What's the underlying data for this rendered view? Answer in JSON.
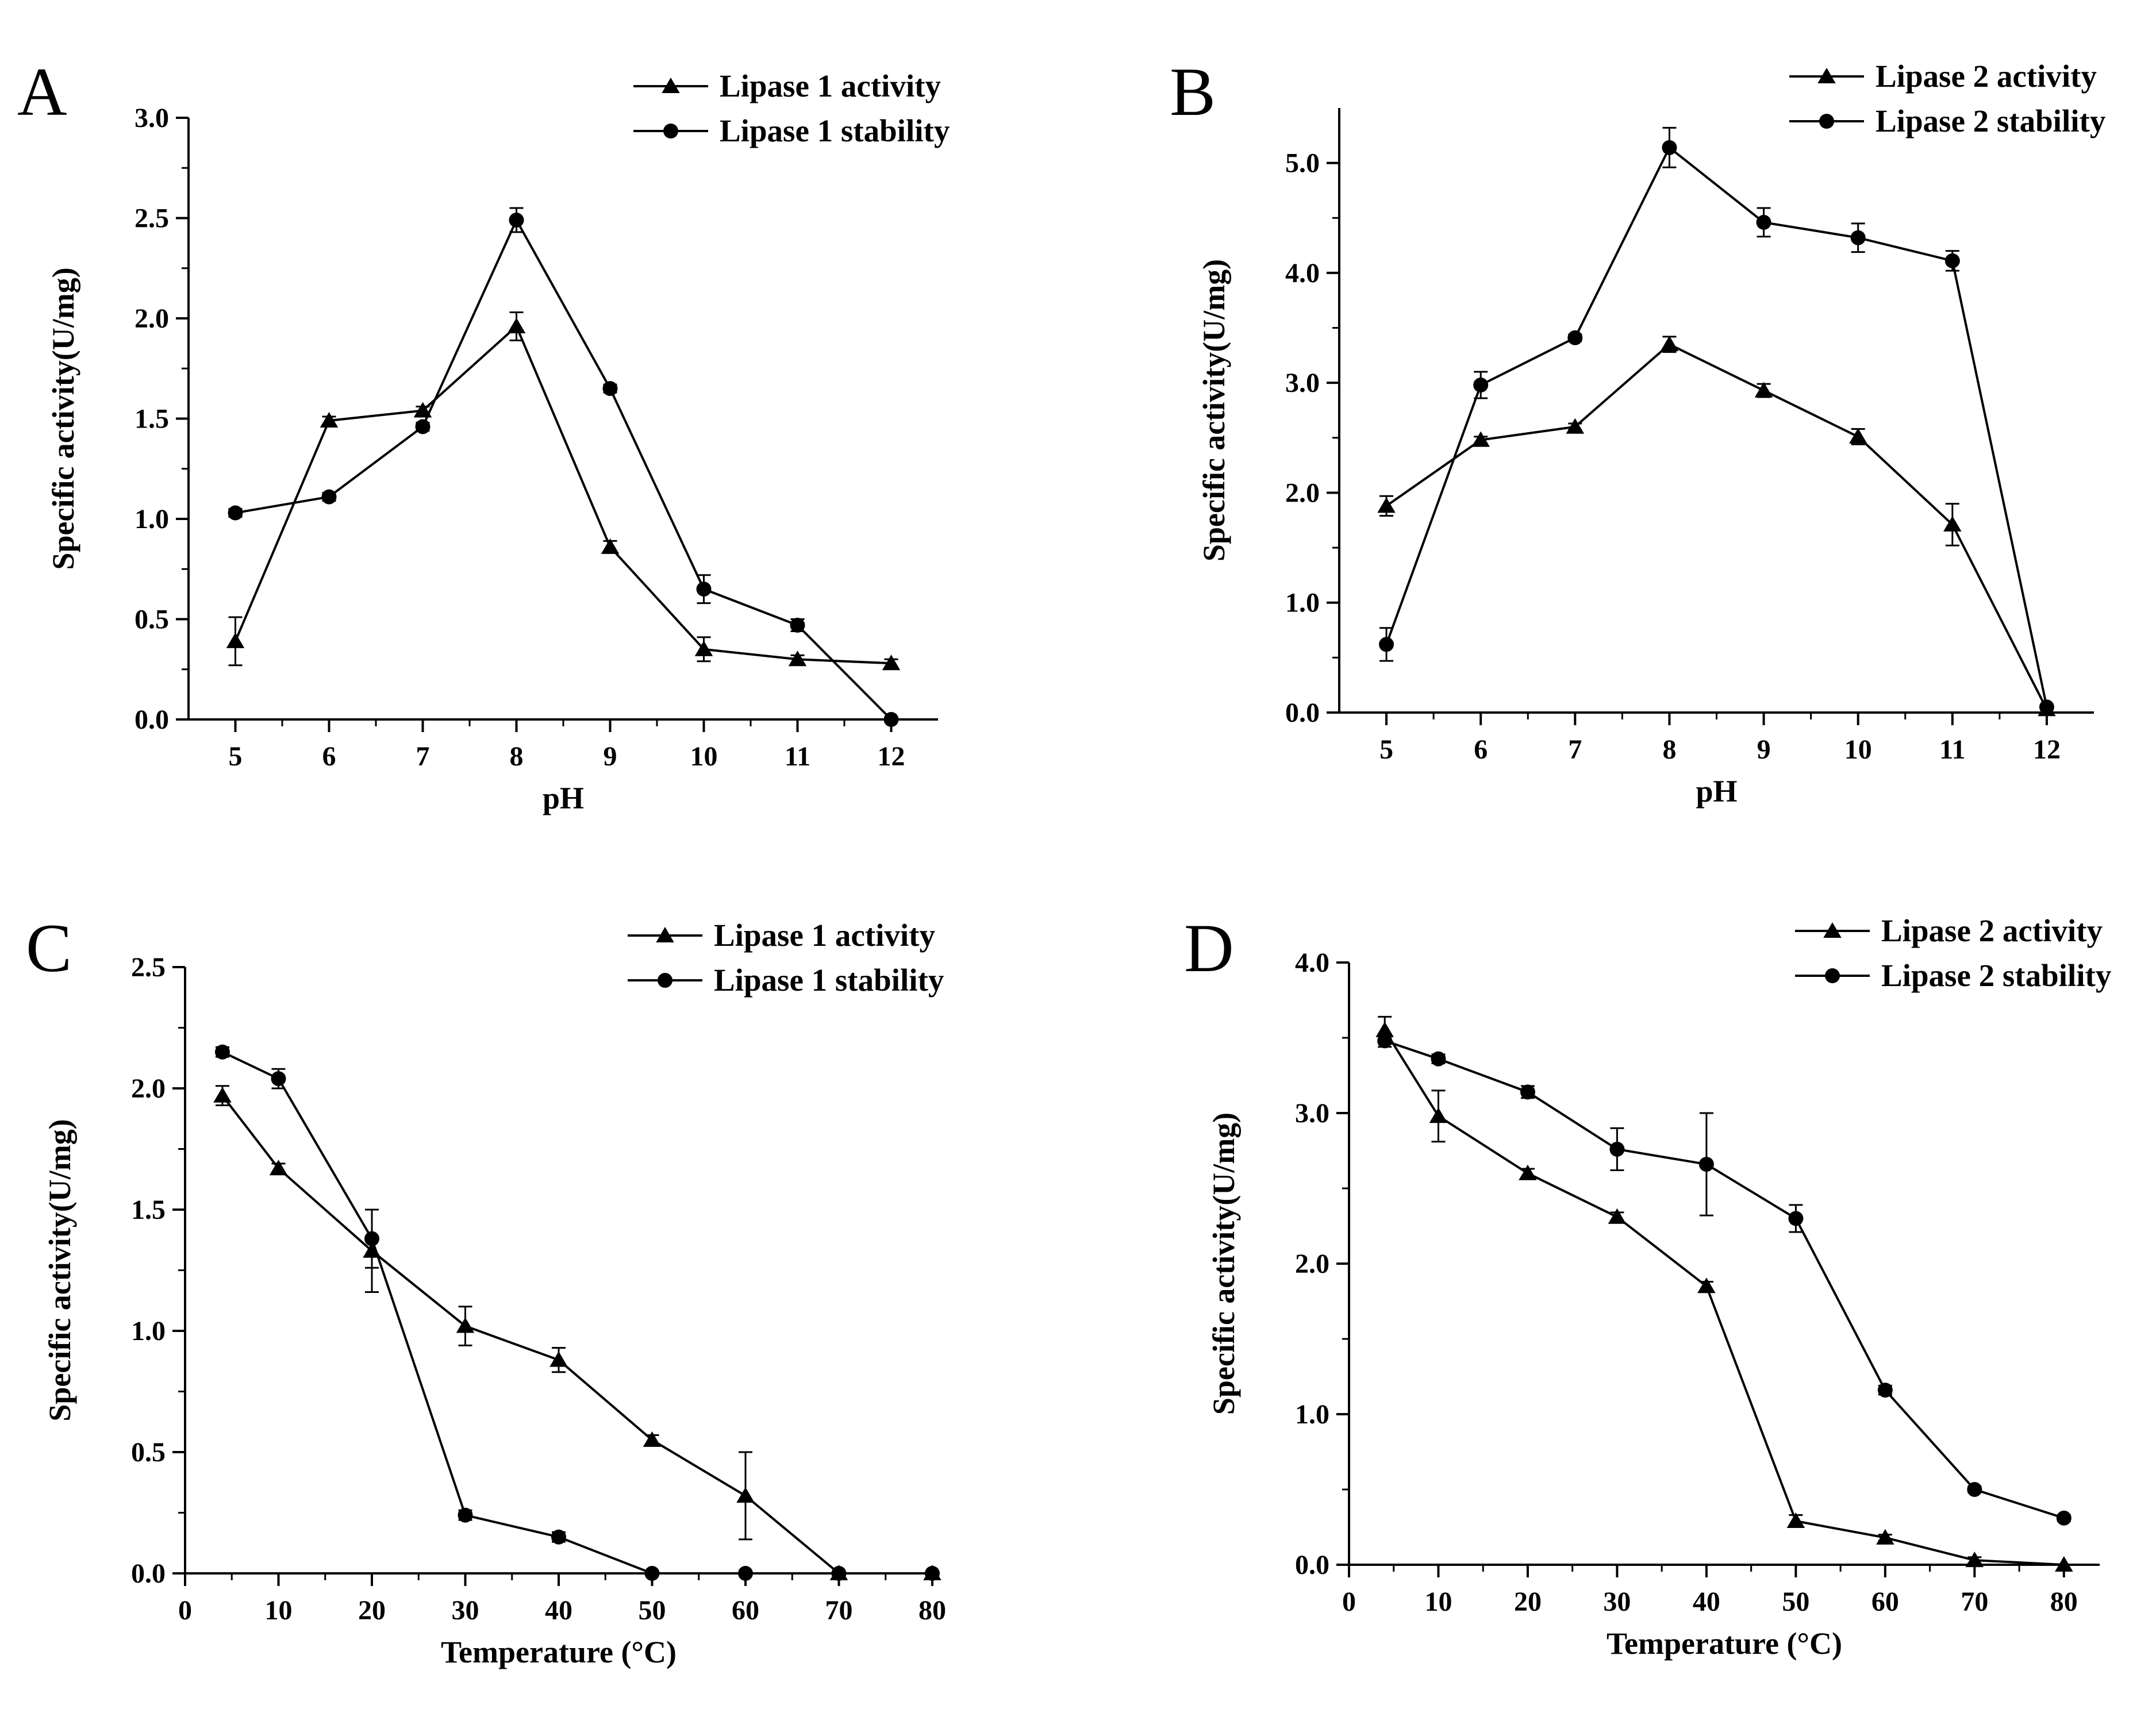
{
  "colors": {
    "ink": "#000000",
    "background": "#ffffff"
  },
  "chart_data": [
    {
      "panel_label": "A",
      "type": "line",
      "xlabel": "pH",
      "ylabel": "Specific activity(U/mg)",
      "xlim": [
        4.5,
        12.5
      ],
      "ylim": [
        0,
        3.0
      ],
      "x_ticks": [
        "5",
        "6",
        "7",
        "8",
        "9",
        "10",
        "11",
        "12"
      ],
      "y_ticks": [
        "0.0",
        "0.5",
        "1.0",
        "1.5",
        "2.0",
        "2.5",
        "3.0"
      ],
      "grid": false,
      "legend_position": "top-right",
      "series": [
        {
          "name": "Lipase 1 activity",
          "marker": "triangle",
          "x": [
            5,
            6,
            7,
            8,
            9,
            10,
            11,
            12
          ],
          "values": [
            0.39,
            1.49,
            1.54,
            1.96,
            0.86,
            0.35,
            0.3,
            0.28
          ],
          "error": [
            0.12,
            0.02,
            0.02,
            0.07,
            0.03,
            0.06,
            0.02,
            0.02
          ]
        },
        {
          "name": "Lipase 1 stability",
          "marker": "circle",
          "x": [
            5,
            6,
            7,
            8,
            9,
            10,
            11,
            12
          ],
          "values": [
            1.03,
            1.11,
            1.46,
            2.49,
            1.65,
            0.65,
            0.47,
            0.0
          ],
          "error": [
            0.02,
            0.02,
            0.02,
            0.06,
            0.02,
            0.07,
            0.03,
            0.0
          ]
        }
      ]
    },
    {
      "panel_label": "B",
      "type": "line",
      "xlabel": "pH",
      "ylabel": "Specific activity(U/mg)",
      "xlim": [
        4.5,
        12.5
      ],
      "ylim": [
        0,
        5.5
      ],
      "x_ticks": [
        "5",
        "6",
        "7",
        "8",
        "9",
        "10",
        "11",
        "12"
      ],
      "y_ticks": [
        "0.0",
        "1.0",
        "2.0",
        "3.0",
        "4.0",
        "5.0"
      ],
      "grid": false,
      "legend_position": "top-right",
      "series": [
        {
          "name": "Lipase 2 activity",
          "marker": "triangle",
          "x": [
            5,
            6,
            7,
            8,
            9,
            10,
            11,
            12
          ],
          "values": [
            1.88,
            2.48,
            2.6,
            3.35,
            2.93,
            2.51,
            1.71,
            0.03
          ],
          "error": [
            0.09,
            0.03,
            0.03,
            0.07,
            0.06,
            0.07,
            0.19,
            0.0
          ]
        },
        {
          "name": "Lipase 2 stability",
          "marker": "circle",
          "x": [
            5,
            6,
            7,
            8,
            9,
            10,
            11,
            12
          ],
          "values": [
            0.62,
            2.98,
            3.41,
            5.14,
            4.46,
            4.32,
            4.11,
            0.05
          ],
          "error": [
            0.15,
            0.12,
            0.03,
            0.18,
            0.13,
            0.13,
            0.09,
            0.0
          ]
        }
      ]
    },
    {
      "panel_label": "C",
      "type": "line",
      "xlabel": "Temperature (°C)",
      "ylabel": "Specific activity(U/mg)",
      "xlim": [
        0,
        80
      ],
      "ylim": [
        0,
        2.5
      ],
      "x_ticks": [
        "0",
        "10",
        "20",
        "30",
        "40",
        "50",
        "60",
        "70",
        "80"
      ],
      "y_ticks": [
        "0.0",
        "0.5",
        "1.0",
        "1.5",
        "2.0",
        "2.5"
      ],
      "grid": false,
      "legend_position": "top-right",
      "series": [
        {
          "name": "Lipase 1 activity",
          "marker": "triangle",
          "x": [
            4,
            10,
            20,
            30,
            40,
            50,
            60,
            70,
            80
          ],
          "values": [
            1.97,
            1.67,
            1.33,
            1.02,
            0.88,
            0.55,
            0.32,
            0.0,
            0.0
          ],
          "error": [
            0.04,
            0.02,
            0.17,
            0.08,
            0.05,
            0.02,
            0.18,
            0.0,
            0.0
          ]
        },
        {
          "name": "Lipase 1 stability",
          "marker": "circle",
          "x": [
            4,
            10,
            20,
            30,
            40,
            50,
            60,
            70,
            80
          ],
          "values": [
            2.15,
            2.04,
            1.38,
            0.24,
            0.15,
            0.0,
            0.0,
            0.0,
            0.0
          ],
          "error": [
            0.02,
            0.04,
            0.12,
            0.02,
            0.02,
            0.0,
            0.0,
            0.0,
            0.0
          ]
        }
      ]
    },
    {
      "panel_label": "D",
      "type": "line",
      "xlabel": "Temperature (°C)",
      "ylabel": "Specific activity(U/mg)",
      "xlim": [
        0,
        84
      ],
      "ylim": [
        0,
        4.0
      ],
      "x_ticks": [
        "0",
        "10",
        "20",
        "30",
        "40",
        "50",
        "60",
        "70",
        "80"
      ],
      "y_ticks": [
        "0.0",
        "1.0",
        "2.0",
        "3.0",
        "4.0"
      ],
      "grid": false,
      "legend_position": "top-right",
      "series": [
        {
          "name": "Lipase 2 activity",
          "marker": "triangle",
          "x": [
            4,
            10,
            20,
            30,
            40,
            50,
            60,
            70,
            80
          ],
          "values": [
            3.55,
            2.98,
            2.6,
            2.31,
            1.85,
            0.29,
            0.18,
            0.03,
            0.0
          ],
          "error": [
            0.09,
            0.17,
            0.03,
            0.03,
            0.03,
            0.04,
            0.02,
            0.02,
            0.0
          ]
        },
        {
          "name": "Lipase 2 stability",
          "marker": "circle",
          "x": [
            4,
            10,
            20,
            30,
            40,
            50,
            60,
            70,
            80
          ],
          "values": [
            3.48,
            3.36,
            3.14,
            2.76,
            2.66,
            2.3,
            1.16,
            0.5,
            0.31
          ],
          "error": [
            0.04,
            0.03,
            0.04,
            0.14,
            0.34,
            0.09,
            0.03,
            0.02,
            0.02
          ]
        }
      ]
    }
  ]
}
